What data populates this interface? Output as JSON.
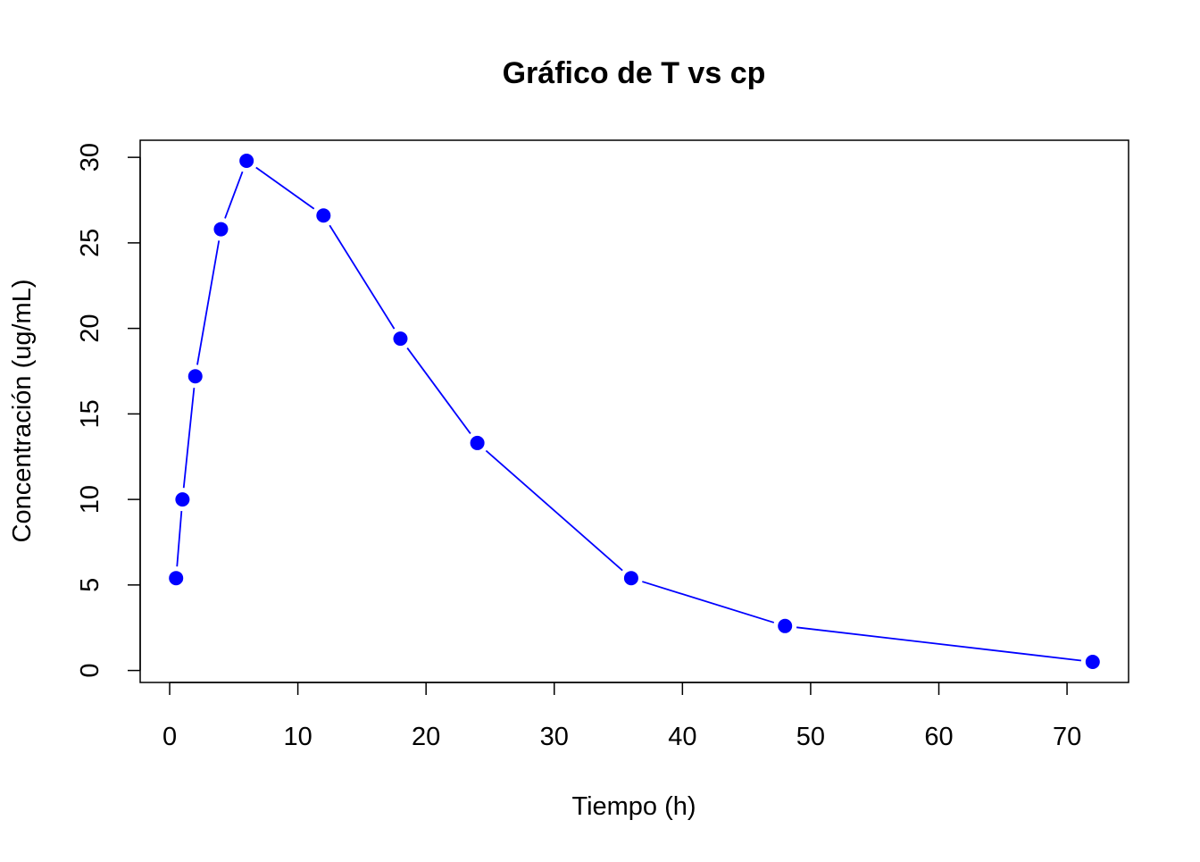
{
  "chart_data": {
    "type": "line",
    "title": "Gráfico de T vs cp",
    "xlabel": "Tiempo (h)",
    "ylabel": "Concentración (ug/mL)",
    "xlim": [
      -2.3,
      74.8
    ],
    "ylim": [
      -0.7,
      31.0
    ],
    "xticks": [
      0,
      10,
      20,
      30,
      40,
      50,
      60,
      70
    ],
    "yticks": [
      0,
      5,
      10,
      15,
      20,
      25,
      30
    ],
    "grid": false,
    "legend": "none",
    "marker": "filled-circle",
    "line_style": "overplotted-gaps",
    "series": [
      {
        "color": "#0000FF",
        "x": [
          0.5,
          1,
          2,
          4,
          6,
          12,
          18,
          24,
          36,
          48,
          72
        ],
        "y": [
          5.4,
          10.0,
          17.2,
          25.8,
          29.8,
          26.6,
          19.4,
          13.3,
          5.4,
          2.6,
          0.5
        ]
      }
    ]
  }
}
